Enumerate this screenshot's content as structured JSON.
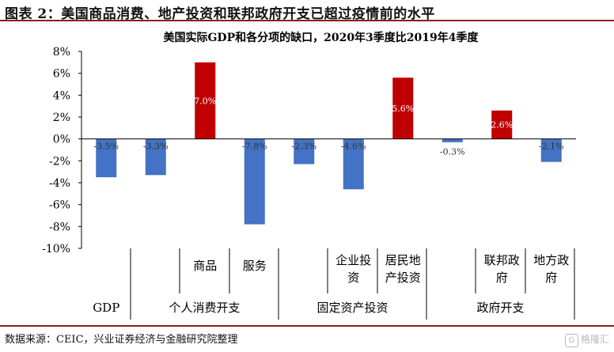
{
  "figure_title": "图表 2：美国商品消费、地产投资和联邦政府开支已超过疫情前的水平",
  "source": "数据来源：CEIC，兴业证券经济与金融研究院整理",
  "watermark": "格隆汇",
  "chart_data": {
    "type": "bar",
    "title": "美国实际GDP和各分项的缺口，2020年3季度比2019年4季度",
    "ylim": [
      -10,
      8
    ],
    "yticks": [
      8,
      6,
      4,
      2,
      0,
      -2,
      -4,
      -6,
      -8,
      -10
    ],
    "ytick_labels": [
      "8%",
      "6%",
      "4%",
      "2%",
      "0%",
      "-2%",
      "-4%",
      "-6%",
      "-8%",
      "-10%"
    ],
    "grid": false,
    "colors": {
      "positive": "#C00000",
      "negative": "#4472C4"
    },
    "bars": [
      {
        "value": -3.5,
        "label": "-3.5%"
      },
      {
        "value": -3.3,
        "label": "-3.3%"
      },
      {
        "value": 7.0,
        "label": "7.0%"
      },
      {
        "value": -7.8,
        "label": "-7.8%"
      },
      {
        "value": -2.3,
        "label": "-2.3%"
      },
      {
        "value": -4.6,
        "label": "-4.6%"
      },
      {
        "value": 5.6,
        "label": "5.6%"
      },
      {
        "value": -0.3,
        "label": "-0.3%"
      },
      {
        "value": 2.6,
        "label": "2.6%"
      },
      {
        "value": -2.1,
        "label": "-2.1%"
      }
    ],
    "sub_labels": [
      [
        "商品"
      ],
      [
        "服务"
      ],
      [
        "企业投",
        "资"
      ],
      [
        "居民地",
        "产投资"
      ],
      [
        "联邦政",
        "府"
      ],
      [
        "地方政",
        "府"
      ]
    ],
    "group_labels": [
      "GDP",
      "个人消费开支",
      "固定资产投资",
      "政府开支"
    ]
  }
}
